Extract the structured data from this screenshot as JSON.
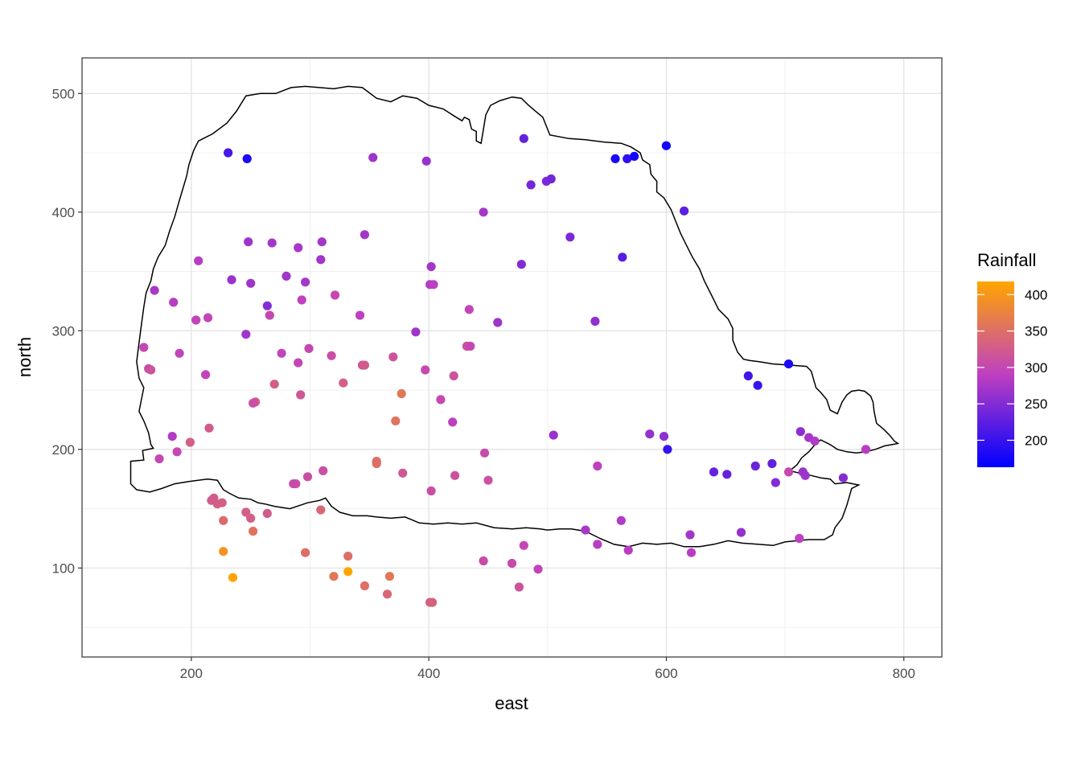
{
  "chart_data": {
    "type": "scatter",
    "xlabel": "east",
    "ylabel": "north",
    "xlim": [
      108,
      832
    ],
    "ylim": [
      25,
      530
    ],
    "x_ticks": [
      200,
      400,
      600,
      800
    ],
    "y_ticks": [
      100,
      200,
      300,
      400,
      500
    ],
    "x_tick_labels": [
      "200",
      "400",
      "600",
      "800"
    ],
    "y_tick_labels": [
      "100",
      "200",
      "300",
      "400",
      "500"
    ],
    "grid": true,
    "legend": {
      "title": "Rainfall",
      "position": "right",
      "min": 163,
      "max": 418,
      "ticks": [
        200,
        250,
        300,
        350,
        400
      ],
      "tick_labels": [
        "200",
        "250",
        "300",
        "350",
        "400"
      ],
      "color_low": "#0000FF",
      "color_mid": "#C040C0",
      "color_high": "#FFA500"
    },
    "border": [
      [
        168,
        201
      ],
      [
        159,
        199
      ],
      [
        160,
        191
      ],
      [
        149,
        190
      ],
      [
        149,
        171
      ],
      [
        154,
        166
      ],
      [
        165,
        164
      ],
      [
        175,
        167
      ],
      [
        186,
        171
      ],
      [
        198,
        173
      ],
      [
        214,
        175
      ],
      [
        222,
        174
      ],
      [
        227,
        166
      ],
      [
        232,
        163
      ],
      [
        240,
        159
      ],
      [
        250,
        158
      ],
      [
        256,
        155
      ],
      [
        262,
        154
      ],
      [
        270,
        152
      ],
      [
        283,
        150
      ],
      [
        298,
        155
      ],
      [
        308,
        157
      ],
      [
        313,
        159
      ],
      [
        318,
        152
      ],
      [
        325,
        147
      ],
      [
        336,
        144
      ],
      [
        348,
        144
      ],
      [
        356,
        143
      ],
      [
        368,
        142
      ],
      [
        380,
        143
      ],
      [
        392,
        138
      ],
      [
        404,
        137
      ],
      [
        416,
        138
      ],
      [
        428,
        137
      ],
      [
        440,
        138
      ],
      [
        455,
        134
      ],
      [
        470,
        133
      ],
      [
        482,
        134
      ],
      [
        494,
        133
      ],
      [
        500,
        132
      ],
      [
        510,
        133
      ],
      [
        520,
        133
      ],
      [
        532,
        131
      ],
      [
        544,
        125
      ],
      [
        556,
        120
      ],
      [
        568,
        118
      ],
      [
        580,
        121
      ],
      [
        592,
        120
      ],
      [
        604,
        121
      ],
      [
        615,
        118
      ],
      [
        628,
        118
      ],
      [
        640,
        120
      ],
      [
        652,
        123
      ],
      [
        664,
        121
      ],
      [
        678,
        120
      ],
      [
        690,
        119
      ],
      [
        700,
        122
      ],
      [
        710,
        123
      ],
      [
        720,
        124
      ],
      [
        733,
        124
      ],
      [
        740,
        128
      ],
      [
        742,
        134
      ],
      [
        748,
        142
      ],
      [
        752,
        153
      ],
      [
        756,
        167
      ],
      [
        762,
        170
      ],
      [
        752,
        172
      ],
      [
        742,
        171
      ],
      [
        738,
        175
      ],
      [
        730,
        176
      ],
      [
        722,
        178
      ],
      [
        712,
        180
      ],
      [
        704,
        182
      ],
      [
        710,
        187
      ],
      [
        714,
        193
      ],
      [
        720,
        198
      ],
      [
        726,
        205
      ],
      [
        730,
        208
      ],
      [
        738,
        204
      ],
      [
        744,
        200
      ],
      [
        752,
        198
      ],
      [
        760,
        197
      ],
      [
        768,
        198
      ],
      [
        776,
        200
      ],
      [
        784,
        203
      ],
      [
        790,
        204
      ],
      [
        795,
        205
      ],
      [
        792,
        207
      ],
      [
        788,
        212
      ],
      [
        783,
        217
      ],
      [
        777,
        222
      ],
      [
        775,
        232
      ],
      [
        774,
        240
      ],
      [
        772,
        245
      ],
      [
        767,
        249
      ],
      [
        762,
        250
      ],
      [
        756,
        249
      ],
      [
        752,
        246
      ],
      [
        748,
        240
      ],
      [
        744,
        230
      ],
      [
        738,
        233
      ],
      [
        735,
        242
      ],
      [
        730,
        248
      ],
      [
        726,
        252
      ],
      [
        722,
        266
      ],
      [
        718,
        270
      ],
      [
        705,
        271
      ],
      [
        690,
        272
      ],
      [
        678,
        274
      ],
      [
        670,
        275
      ],
      [
        665,
        276
      ],
      [
        660,
        282
      ],
      [
        656,
        292
      ],
      [
        656,
        302
      ],
      [
        652,
        310
      ],
      [
        644,
        318
      ],
      [
        638,
        330
      ],
      [
        632,
        342
      ],
      [
        628,
        352
      ],
      [
        622,
        362
      ],
      [
        617,
        372
      ],
      [
        612,
        382
      ],
      [
        608,
        392
      ],
      [
        604,
        402
      ],
      [
        598,
        412
      ],
      [
        592,
        417
      ],
      [
        592,
        426
      ],
      [
        587,
        432
      ],
      [
        586,
        440
      ],
      [
        580,
        444
      ],
      [
        578,
        450
      ],
      [
        570,
        455
      ],
      [
        562,
        458
      ],
      [
        548,
        459
      ],
      [
        532,
        461
      ],
      [
        518,
        462
      ],
      [
        502,
        465
      ],
      [
        496,
        480
      ],
      [
        490,
        485
      ],
      [
        484,
        490
      ],
      [
        478,
        496
      ],
      [
        470,
        497
      ],
      [
        460,
        494
      ],
      [
        452,
        490
      ],
      [
        448,
        482
      ],
      [
        446,
        470
      ],
      [
        444,
        458
      ],
      [
        440,
        460
      ],
      [
        440,
        468
      ],
      [
        436,
        470
      ],
      [
        434,
        478
      ],
      [
        430,
        480
      ],
      [
        428,
        477
      ],
      [
        423,
        480
      ],
      [
        412,
        487
      ],
      [
        400,
        490
      ],
      [
        390,
        496
      ],
      [
        378,
        498
      ],
      [
        368,
        493
      ],
      [
        356,
        496
      ],
      [
        344,
        505
      ],
      [
        332,
        506
      ],
      [
        320,
        504
      ],
      [
        308,
        505
      ],
      [
        296,
        506
      ],
      [
        284,
        505
      ],
      [
        271,
        500
      ],
      [
        258,
        500
      ],
      [
        246,
        498
      ],
      [
        238,
        485
      ],
      [
        230,
        475
      ],
      [
        218,
        466
      ],
      [
        206,
        460
      ],
      [
        202,
        452
      ],
      [
        198,
        440
      ],
      [
        196,
        430
      ],
      [
        190,
        410
      ],
      [
        186,
        396
      ],
      [
        182,
        385
      ],
      [
        178,
        372
      ],
      [
        172,
        362
      ],
      [
        168,
        352
      ],
      [
        166,
        342
      ],
      [
        162,
        332
      ],
      [
        160,
        320
      ],
      [
        158,
        305
      ],
      [
        156,
        290
      ],
      [
        154,
        274
      ],
      [
        156,
        260
      ],
      [
        160,
        252
      ],
      [
        158,
        242
      ],
      [
        156,
        232
      ],
      [
        160,
        224
      ],
      [
        164,
        214
      ],
      [
        166,
        204
      ]
    ],
    "points": [
      [
        231,
        450,
        210
      ],
      [
        247,
        445,
        180
      ],
      [
        353,
        446,
        268
      ],
      [
        398,
        443,
        262
      ],
      [
        480,
        462,
        230
      ],
      [
        486,
        423,
        240
      ],
      [
        499,
        426,
        245
      ],
      [
        503,
        428,
        240
      ],
      [
        557,
        445,
        180
      ],
      [
        567,
        445,
        195
      ],
      [
        573,
        447,
        175
      ],
      [
        600,
        456,
        175
      ],
      [
        615,
        401,
        225
      ],
      [
        446,
        400,
        272
      ],
      [
        519,
        379,
        245
      ],
      [
        563,
        362,
        220
      ],
      [
        478,
        356,
        250
      ],
      [
        540,
        308,
        258
      ],
      [
        458,
        307,
        268
      ],
      [
        402,
        354,
        272
      ],
      [
        401,
        339,
        282
      ],
      [
        404,
        339,
        288
      ],
      [
        434,
        318,
        296
      ],
      [
        432,
        287,
        310
      ],
      [
        435,
        287,
        300
      ],
      [
        389,
        299,
        268
      ],
      [
        346,
        381,
        270
      ],
      [
        342,
        313,
        290
      ],
      [
        310,
        375,
        272
      ],
      [
        309,
        360,
        270
      ],
      [
        290,
        370,
        275
      ],
      [
        268,
        374,
        272
      ],
      [
        248,
        375,
        268
      ],
      [
        206,
        359,
        285
      ],
      [
        234,
        343,
        265
      ],
      [
        250,
        340,
        268
      ],
      [
        280,
        346,
        270
      ],
      [
        296,
        341,
        272
      ],
      [
        321,
        330,
        300
      ],
      [
        264,
        321,
        250
      ],
      [
        293,
        326,
        290
      ],
      [
        266,
        313,
        300
      ],
      [
        204,
        309,
        295
      ],
      [
        214,
        311,
        296
      ],
      [
        169,
        334,
        275
      ],
      [
        185,
        324,
        285
      ],
      [
        160,
        286,
        300
      ],
      [
        164,
        268,
        305
      ],
      [
        166,
        267,
        315
      ],
      [
        190,
        281,
        295
      ],
      [
        212,
        263,
        295
      ],
      [
        246,
        297,
        270
      ],
      [
        276,
        281,
        295
      ],
      [
        290,
        273,
        298
      ],
      [
        299,
        285,
        300
      ],
      [
        318,
        279,
        310
      ],
      [
        344,
        271,
        318
      ],
      [
        346,
        271,
        325
      ],
      [
        370,
        278,
        315
      ],
      [
        397,
        267,
        302
      ],
      [
        421,
        262,
        315
      ],
      [
        270,
        255,
        330
      ],
      [
        292,
        246,
        320
      ],
      [
        254,
        240,
        325
      ],
      [
        252,
        239,
        310
      ],
      [
        328,
        256,
        330
      ],
      [
        377,
        247,
        360
      ],
      [
        410,
        242,
        300
      ],
      [
        420,
        223,
        290
      ],
      [
        372,
        224,
        355
      ],
      [
        184,
        211,
        282
      ],
      [
        173,
        192,
        300
      ],
      [
        188,
        198,
        300
      ],
      [
        199,
        206,
        330
      ],
      [
        215,
        218,
        325
      ],
      [
        288,
        171,
        310
      ],
      [
        286,
        171,
        305
      ],
      [
        298,
        177,
        310
      ],
      [
        311,
        182,
        310
      ],
      [
        356,
        188,
        350
      ],
      [
        356,
        190,
        350
      ],
      [
        378,
        180,
        320
      ],
      [
        402,
        165,
        310
      ],
      [
        422,
        178,
        312
      ],
      [
        447,
        197,
        305
      ],
      [
        450,
        174,
        312
      ],
      [
        219,
        159,
        330
      ],
      [
        222,
        154,
        330
      ],
      [
        226,
        155,
        330
      ],
      [
        217,
        157,
        325
      ],
      [
        246,
        147,
        330
      ],
      [
        250,
        142,
        330
      ],
      [
        264,
        146,
        325
      ],
      [
        252,
        131,
        355
      ],
      [
        227,
        140,
        345
      ],
      [
        309,
        149,
        340
      ],
      [
        227,
        114,
        395
      ],
      [
        235,
        92,
        415
      ],
      [
        296,
        113,
        350
      ],
      [
        320,
        93,
        360
      ],
      [
        332,
        110,
        350
      ],
      [
        332,
        97,
        418
      ],
      [
        346,
        85,
        350
      ],
      [
        367,
        93,
        360
      ],
      [
        365,
        78,
        340
      ],
      [
        401,
        71,
        330
      ],
      [
        403,
        71,
        335
      ],
      [
        446,
        106,
        305
      ],
      [
        476,
        84,
        315
      ],
      [
        470,
        104,
        305
      ],
      [
        480,
        119,
        300
      ],
      [
        492,
        99,
        296
      ],
      [
        505,
        212,
        265
      ],
      [
        532,
        132,
        275
      ],
      [
        542,
        186,
        290
      ],
      [
        542,
        120,
        285
      ],
      [
        562,
        140,
        280
      ],
      [
        568,
        115,
        285
      ],
      [
        586,
        213,
        262
      ],
      [
        598,
        211,
        258
      ],
      [
        601,
        200,
        200
      ],
      [
        620,
        128,
        270
      ],
      [
        621,
        113,
        285
      ],
      [
        640,
        181,
        230
      ],
      [
        651,
        179,
        230
      ],
      [
        663,
        130,
        262
      ],
      [
        669,
        262,
        205
      ],
      [
        677,
        254,
        200
      ],
      [
        675,
        186,
        235
      ],
      [
        689,
        188,
        228
      ],
      [
        692,
        172,
        250
      ],
      [
        703,
        272,
        180
      ],
      [
        703,
        181,
        300
      ],
      [
        713,
        215,
        255
      ],
      [
        715,
        181,
        265
      ],
      [
        717,
        178,
        268
      ],
      [
        720,
        210,
        272
      ],
      [
        725,
        207,
        280
      ],
      [
        712,
        125,
        290
      ],
      [
        749,
        176,
        250
      ],
      [
        768,
        200,
        285
      ]
    ]
  }
}
